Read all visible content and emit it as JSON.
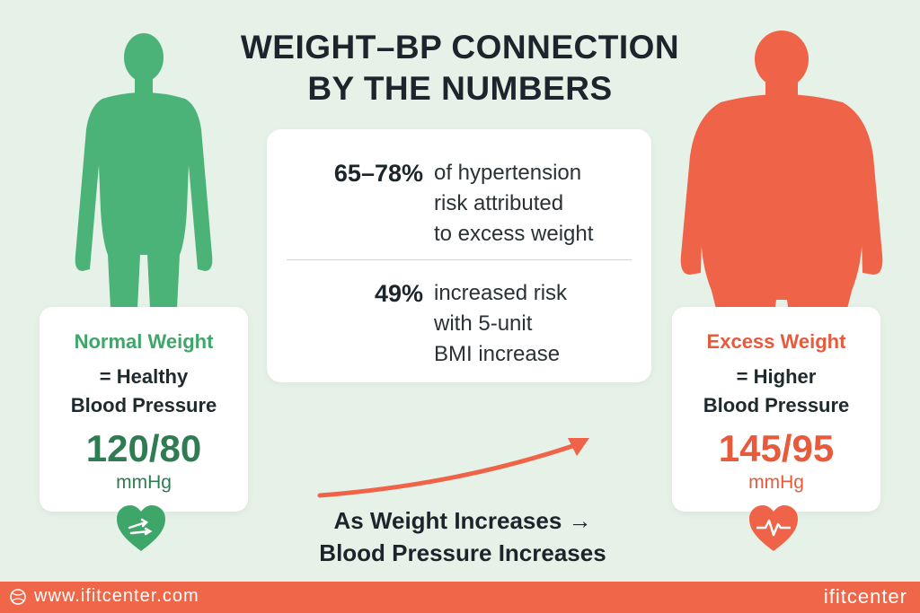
{
  "title": {
    "line1": "WEIGHT–BP CONNECTION",
    "line2": "BY THE NUMBERS"
  },
  "left_card": {
    "label": "Normal Weight",
    "line1": "= Healthy",
    "line2": "Blood Pressure",
    "bp": "120/80",
    "unit": "mmHg"
  },
  "right_card": {
    "label": "Excess Weight",
    "line1": "= Higher",
    "line2": "Blood Pressure",
    "bp": "145/95",
    "unit": "mmHg"
  },
  "stats": [
    {
      "value": "65–78%",
      "line1": "of hypertension",
      "line2": "risk attributed",
      "line3": "to excess weight"
    },
    {
      "value": "49%",
      "line1": "increased risk",
      "line2": "with 5-unit",
      "line3": "BMI increase"
    }
  ],
  "caption": {
    "line1": "As Weight Increases →",
    "line2": "Blood Pressure Increases"
  },
  "footer": {
    "website": "www.ifitcenter.com",
    "brand": "ifitcenter"
  },
  "colors": {
    "background": "#e6f2e8",
    "green": "#3fa66a",
    "red": "#e85a3c",
    "footer": "#f06649"
  }
}
